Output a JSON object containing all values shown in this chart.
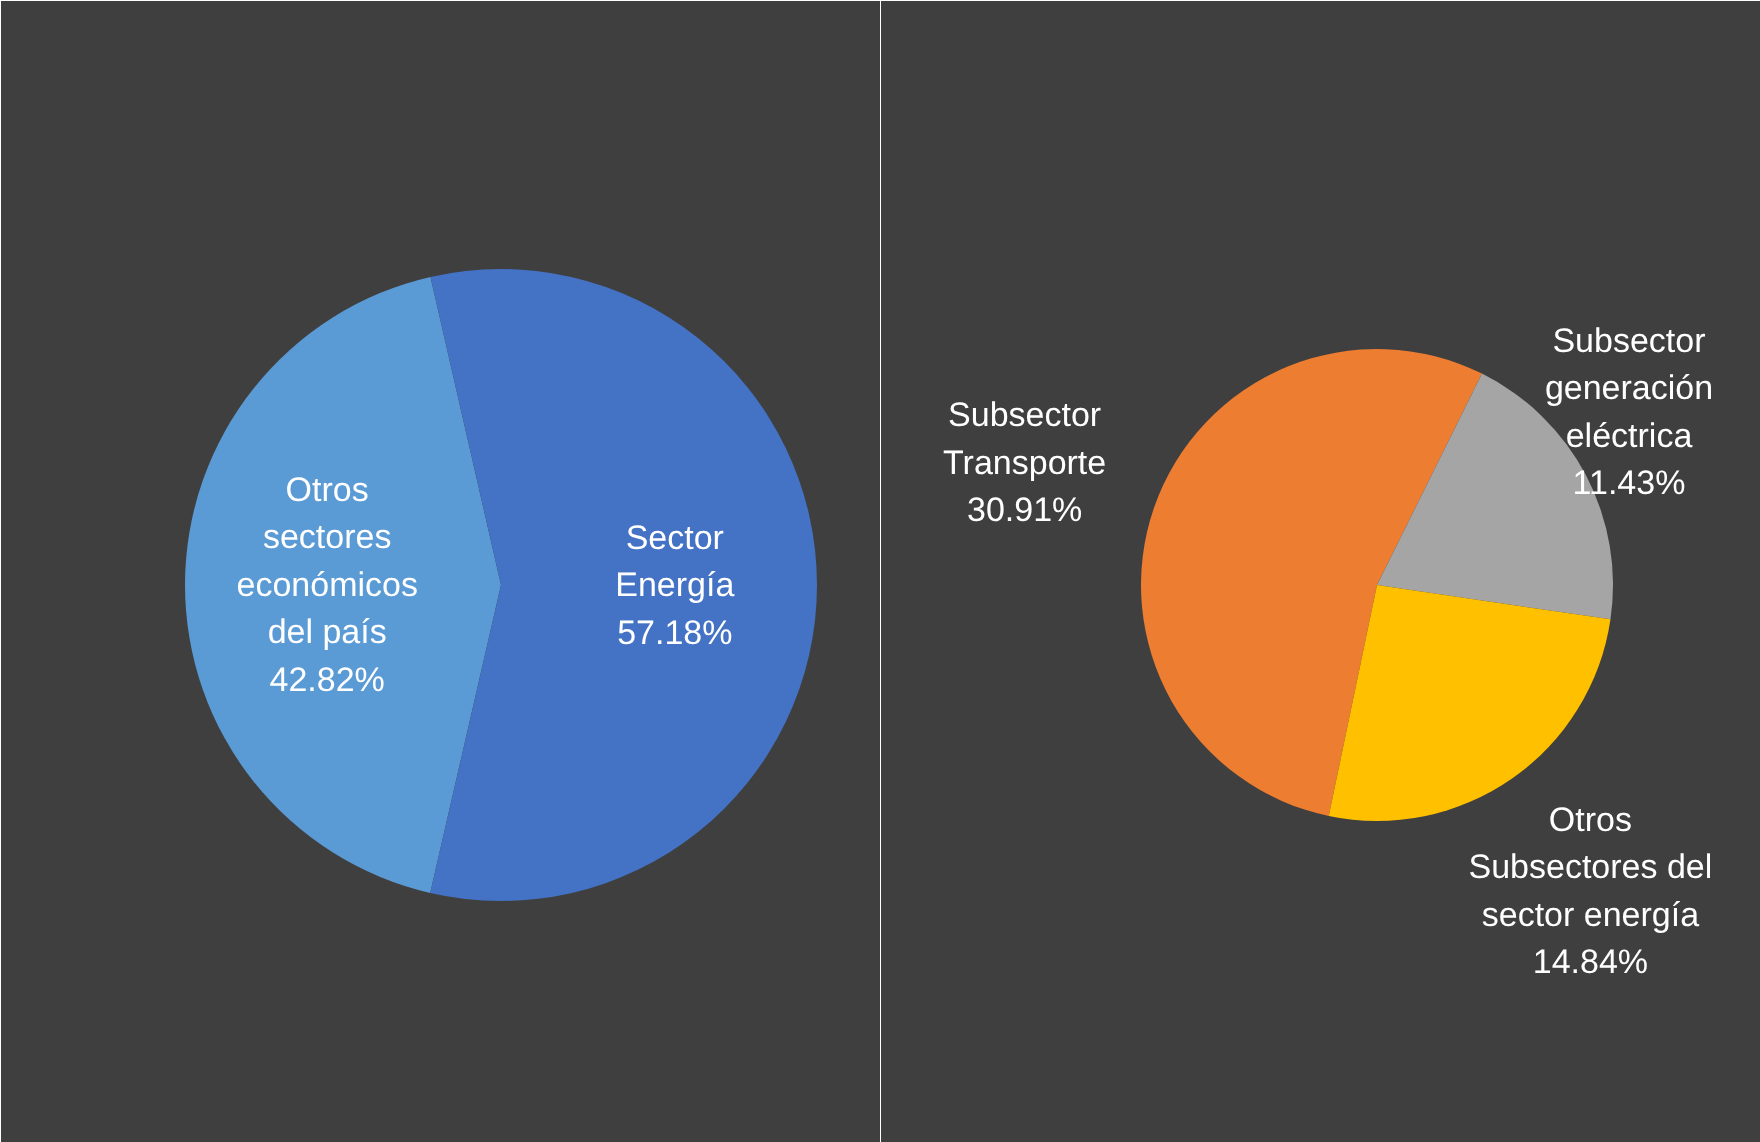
{
  "chart_data": [
    {
      "type": "pie",
      "categories": [
        "Otros sectores económicos del país",
        "Sector Energía"
      ],
      "values": [
        42.82,
        57.18
      ],
      "colors": [
        "#5b9bd5",
        "#4472c4"
      ],
      "value_labels": [
        "42.82%",
        "57.18%"
      ]
    },
    {
      "type": "pie",
      "categories": [
        "Subsector Transporte",
        "Subsector generación eléctrica",
        "Otros Subsectores del sector energía"
      ],
      "values": [
        30.91,
        11.43,
        14.84
      ],
      "colors": [
        "#ed7d31",
        "#a5a5a5",
        "#ffc000"
      ],
      "value_labels": [
        "30.91%",
        "11.43%",
        "14.84%"
      ]
    }
  ]
}
